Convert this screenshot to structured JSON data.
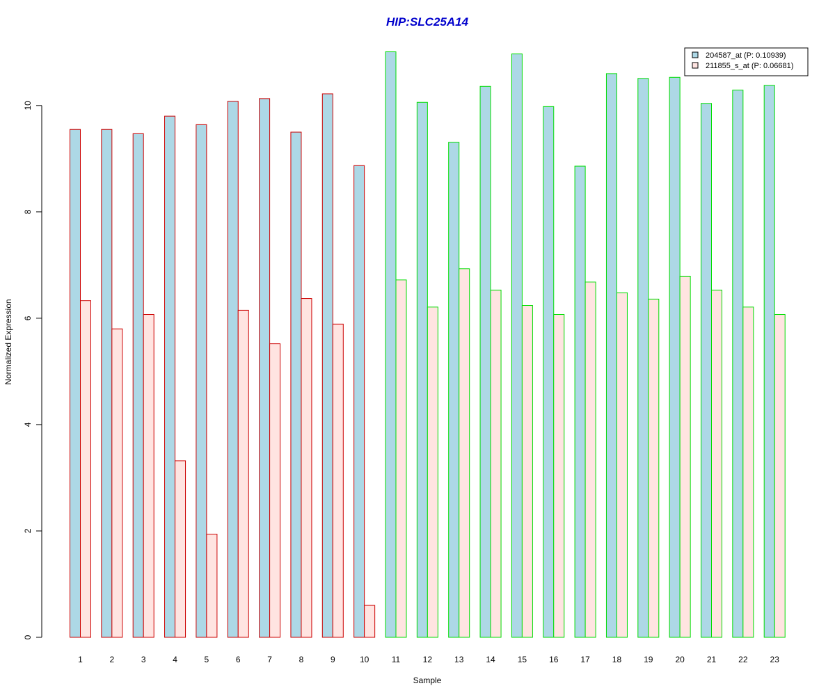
{
  "chart_data": {
    "type": "bar",
    "title": "HIP:SLC25A14",
    "xlabel": "Sample",
    "ylabel": "Normalized Expression",
    "ylim": [
      0,
      11.2
    ],
    "yticks": [
      0,
      2,
      4,
      6,
      8,
      10
    ],
    "categories": [
      "1",
      "2",
      "3",
      "4",
      "5",
      "6",
      "7",
      "8",
      "9",
      "10",
      "11",
      "12",
      "13",
      "14",
      "15",
      "16",
      "17",
      "18",
      "19",
      "20",
      "21",
      "22",
      "23"
    ],
    "groups": [
      {
        "samples": [
          "1",
          "2",
          "3",
          "4",
          "5",
          "6",
          "7",
          "8",
          "9",
          "10"
        ],
        "border_color": "#cc0000"
      },
      {
        "samples": [
          "11",
          "12",
          "13",
          "14",
          "15",
          "16",
          "17",
          "18",
          "19",
          "20",
          "21",
          "22",
          "23"
        ],
        "border_color": "#00dd00"
      }
    ],
    "series": [
      {
        "name": "204587_at (P: 0.10939)",
        "fill": "#add8e6",
        "values": [
          9.55,
          9.55,
          9.47,
          9.8,
          9.64,
          10.08,
          10.13,
          9.5,
          10.22,
          8.87,
          11.01,
          10.06,
          9.31,
          10.36,
          10.97,
          9.98,
          8.86,
          10.6,
          10.51,
          10.53,
          10.04,
          10.29,
          10.38
        ]
      },
      {
        "name": "211855_s_at (P: 0.06681)",
        "fill": "#ffe4e1",
        "values": [
          6.33,
          5.8,
          6.07,
          3.32,
          1.94,
          6.15,
          5.52,
          6.37,
          5.89,
          0.6,
          6.72,
          6.21,
          6.93,
          6.53,
          6.24,
          6.07,
          6.68,
          6.48,
          6.36,
          6.79,
          6.53,
          6.21,
          6.07
        ]
      }
    ],
    "legend": {
      "placement": "top-right"
    },
    "grid": false,
    "colors": {
      "title": "#0000cc",
      "axis": "#000000"
    }
  }
}
